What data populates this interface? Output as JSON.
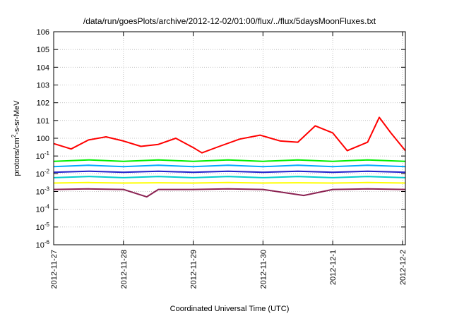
{
  "chart_data": {
    "type": "line",
    "title": "/data/run/goesPlots/archive/2012-12-02/01:00/flux/../flux/5daysMoonFluxes.txt",
    "xlabel": "Coordinated Universal Time (UTC)",
    "ylabel": "protons/cm²-s-sr-MeV",
    "yscale": "log",
    "ylim": [
      1e-06,
      1000000.0
    ],
    "xlim": [
      "2012-11-27",
      "2012-12-02 01:00"
    ],
    "x_ticks": [
      "2012-11-27",
      "2012-11-28",
      "2012-11-29",
      "2012-11-30",
      "2012-12-1",
      "2012-12-2"
    ],
    "y_ticks": [
      "10-6",
      "10-5",
      "10-4",
      "10-3",
      "10-2",
      "10-1",
      "100",
      "101",
      "102",
      "103",
      "104",
      "105",
      "106"
    ],
    "grid": true,
    "legend": "none",
    "series": [
      {
        "color": "#ff0000",
        "x": [
          "2012-11-27 00:00",
          "2012-11-27 06:00",
          "2012-11-27 12:00",
          "2012-11-27 18:00",
          "2012-11-28 00:00",
          "2012-11-28 06:00",
          "2012-11-28 12:00",
          "2012-11-28 18:00",
          "2012-11-29 00:00",
          "2012-11-29 03:00",
          "2012-11-29 09:00",
          "2012-11-29 16:00",
          "2012-11-29 23:00",
          "2012-11-30 06:00",
          "2012-11-30 12:00",
          "2012-11-30 18:00",
          "2012-12-01 00:00",
          "2012-12-01 05:00",
          "2012-12-01 12:00",
          "2012-12-01 16:00",
          "2012-12-01 20:00",
          "2012-12-02 01:00"
        ],
        "y": [
          0.5,
          0.25,
          0.8,
          1.2,
          0.7,
          0.35,
          0.45,
          1.0,
          0.3,
          0.15,
          0.35,
          0.9,
          1.5,
          0.7,
          0.6,
          5.0,
          2.0,
          0.2,
          0.6,
          15,
          2.0,
          0.2
        ]
      },
      {
        "color": "#00ee00",
        "x": [
          "2012-11-27 00:00",
          "2012-11-27 12:00",
          "2012-11-28 00:00",
          "2012-11-28 12:00",
          "2012-11-29 00:00",
          "2012-11-29 12:00",
          "2012-11-30 00:00",
          "2012-11-30 12:00",
          "2012-12-01 00:00",
          "2012-12-01 12:00",
          "2012-12-02 01:00"
        ],
        "y": [
          0.05,
          0.06,
          0.05,
          0.06,
          0.05,
          0.06,
          0.05,
          0.06,
          0.05,
          0.06,
          0.05
        ]
      },
      {
        "color": "#00aaff",
        "x": [
          "2012-11-27 00:00",
          "2012-11-27 12:00",
          "2012-11-28 00:00",
          "2012-11-28 12:00",
          "2012-11-29 00:00",
          "2012-11-29 12:00",
          "2012-11-30 00:00",
          "2012-11-30 12:00",
          "2012-12-01 00:00",
          "2012-12-01 12:00",
          "2012-12-02 01:00"
        ],
        "y": [
          0.025,
          0.03,
          0.025,
          0.03,
          0.025,
          0.03,
          0.025,
          0.03,
          0.025,
          0.03,
          0.025
        ]
      },
      {
        "color": "#2222cc",
        "x": [
          "2012-11-27 00:00",
          "2012-11-27 12:00",
          "2012-11-28 00:00",
          "2012-11-28 12:00",
          "2012-11-29 00:00",
          "2012-11-29 12:00",
          "2012-11-30 00:00",
          "2012-11-30 12:00",
          "2012-12-01 00:00",
          "2012-12-01 12:00",
          "2012-12-02 01:00"
        ],
        "y": [
          0.012,
          0.014,
          0.012,
          0.014,
          0.012,
          0.014,
          0.012,
          0.014,
          0.012,
          0.014,
          0.012
        ]
      },
      {
        "color": "#00cccc",
        "x": [
          "2012-11-27 00:00",
          "2012-11-27 12:00",
          "2012-11-28 00:00",
          "2012-11-28 12:00",
          "2012-11-29 00:00",
          "2012-11-29 12:00",
          "2012-11-30 00:00",
          "2012-11-30 12:00",
          "2012-12-01 00:00",
          "2012-12-01 12:00",
          "2012-12-02 01:00"
        ],
        "y": [
          0.006,
          0.007,
          0.006,
          0.007,
          0.006,
          0.007,
          0.006,
          0.007,
          0.006,
          0.007,
          0.006
        ]
      },
      {
        "color": "#ffff00",
        "x": [
          "2012-11-27 00:00",
          "2012-11-27 12:00",
          "2012-11-28 00:00",
          "2012-11-28 12:00",
          "2012-11-29 00:00",
          "2012-11-29 12:00",
          "2012-11-30 00:00",
          "2012-11-30 12:00",
          "2012-12-01 00:00",
          "2012-12-01 12:00",
          "2012-12-02 01:00"
        ],
        "y": [
          0.003,
          0.0032,
          0.003,
          0.0031,
          0.003,
          0.0032,
          0.003,
          0.0031,
          0.003,
          0.0032,
          0.003
        ]
      },
      {
        "color": "#8b2252",
        "x": [
          "2012-11-27 00:00",
          "2012-11-27 12:00",
          "2012-11-28 00:00",
          "2012-11-28 08:00",
          "2012-11-28 12:00",
          "2012-11-29 00:00",
          "2012-11-29 12:00",
          "2012-11-30 00:00",
          "2012-11-30 14:00",
          "2012-12-01 00:00",
          "2012-12-01 12:00",
          "2012-12-02 01:00"
        ],
        "y": [
          0.0013,
          0.0014,
          0.0013,
          0.0005,
          0.0013,
          0.0013,
          0.0014,
          0.0013,
          0.0006,
          0.0013,
          0.0014,
          0.0013
        ]
      }
    ]
  }
}
